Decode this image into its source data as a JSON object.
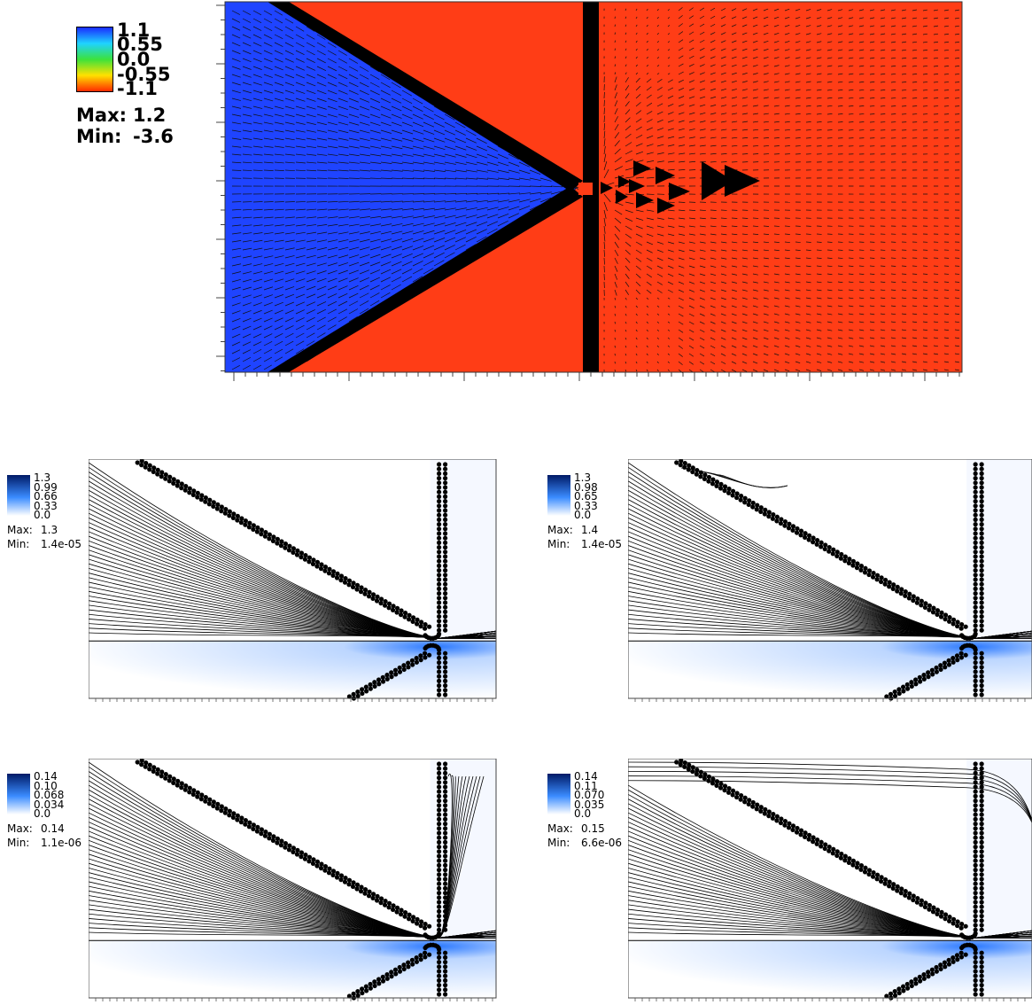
{
  "top_panel": {
    "colorbar": {
      "colors": [
        "#1a2dff",
        "#1fd3ff",
        "#3ce23c",
        "#ffe100",
        "#ff2a00"
      ],
      "ticks": [
        "1.1",
        "0.55",
        "0.0",
        "-0.55",
        "-1.1"
      ],
      "max_label": "Max:",
      "max_value": "1.2",
      "min_label": "Min:",
      "min_value": "-3.6"
    },
    "colors": {
      "left_region": "#1f44ff",
      "right_region": "#ff3d16",
      "wall": "#000000"
    }
  },
  "small_panels": [
    {
      "ticks": [
        "1.3",
        "0.99",
        "0.66",
        "0.33",
        "0.0"
      ],
      "max_label": "Max:",
      "max_value": "1.3",
      "min_label": "Min:",
      "min_value": "1.4e-05"
    },
    {
      "ticks": [
        "1.3",
        "0.98",
        "0.65",
        "0.33",
        "0.0"
      ],
      "max_label": "Max:",
      "max_value": "1.4",
      "min_label": "Min:",
      "min_value": "1.4e-05"
    },
    {
      "ticks": [
        "0.14",
        "0.10",
        "0.068",
        "0.034",
        "0.0"
      ],
      "max_label": "Max:",
      "max_value": "0.14",
      "min_label": "Min:",
      "min_value": "1.1e-06"
    },
    {
      "ticks": [
        "0.14",
        "0.11",
        "0.070",
        "0.035",
        "0.0"
      ],
      "max_label": "Max:",
      "max_value": "0.15",
      "min_label": "Min:",
      "min_value": "6.6e-06"
    }
  ],
  "small_colors": {
    "high": "#001a66",
    "mid": "#3b8cff",
    "low": "#ffffff"
  }
}
